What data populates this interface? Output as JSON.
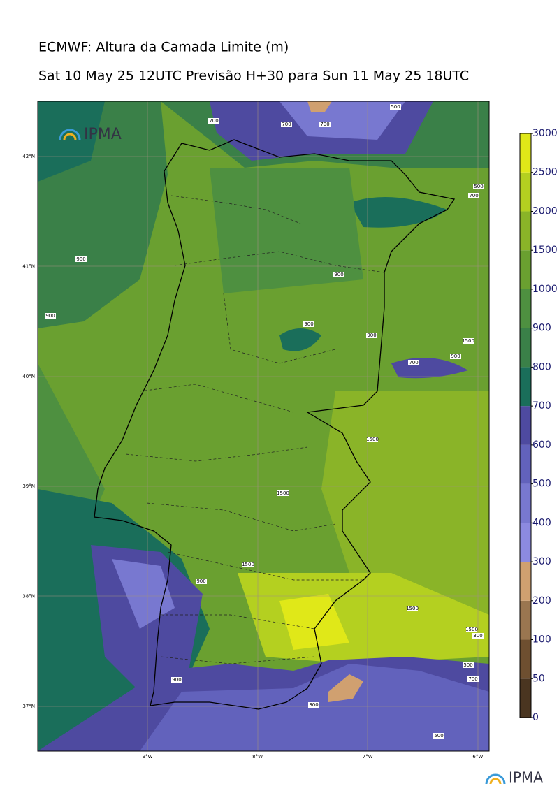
{
  "header": {
    "title": "ECMWF: Altura da Camada Limite (m)",
    "subtitle": "Sat 10 May 25 12UTC Previsão H+30 para Sun 11 May 25 18UTC"
  },
  "map": {
    "logo": "IPMA",
    "lat_labels": [
      "42°N",
      "41°N",
      "40°N",
      "39°N",
      "38°N",
      "37°N"
    ],
    "lon_labels": [
      "9°W",
      "8°W",
      "7°W",
      "6°W"
    ],
    "contour_labels": [
      "700",
      "700",
      "700",
      "500",
      "500",
      "700",
      "900",
      "900",
      "900",
      "900",
      "900",
      "1500",
      "900",
      "700",
      "1500",
      "1500",
      "1500",
      "900",
      "1500",
      "1500",
      "300",
      "500",
      "700",
      "900",
      "300",
      "500"
    ]
  },
  "colorbar": {
    "levels": [
      0,
      50,
      100,
      200,
      300,
      400,
      500,
      600,
      700,
      800,
      900,
      1000,
      1500,
      2000,
      2500,
      3000
    ],
    "colors": [
      "#4a3520",
      "#6e4f30",
      "#9a7650",
      "#d0a070",
      "#8c8ae0",
      "#7878d0",
      "#6262bc",
      "#4e4aa0",
      "#1a6e5a",
      "#3a8048",
      "#4e9040",
      "#6aa030",
      "#8ab428",
      "#b4d020",
      "#e0e818"
    ]
  },
  "footer": {
    "logo": "IPMA"
  }
}
